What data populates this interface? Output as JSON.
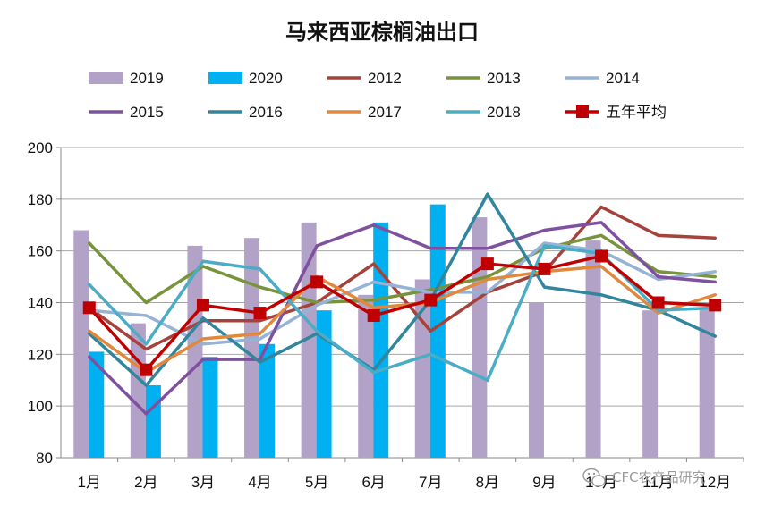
{
  "chart_data": {
    "type": "bar+line",
    "title": "马来西亚棕榈油出口",
    "categories": [
      "1月",
      "2月",
      "3月",
      "4月",
      "5月",
      "6月",
      "7月",
      "8月",
      "9月",
      "10月",
      "11月",
      "12月"
    ],
    "ylim": [
      80,
      200
    ],
    "yticks": [
      80,
      100,
      120,
      140,
      160,
      180,
      200
    ],
    "grid": true,
    "legend_position": "top",
    "bar_series": [
      {
        "name": "2019",
        "color": "#b3a2c7",
        "values": [
          168,
          132,
          162,
          165,
          171,
          143,
          149,
          173,
          140,
          164,
          137,
          138
        ]
      },
      {
        "name": "2020",
        "color": "#00b0f0",
        "values": [
          121,
          108,
          119,
          124,
          137,
          171,
          178,
          null,
          null,
          null,
          null,
          null
        ]
      }
    ],
    "line_series": [
      {
        "name": "2012",
        "color": "#a5423c",
        "values": [
          138,
          122,
          133,
          133,
          140,
          155,
          129,
          144,
          152,
          177,
          166,
          165
        ]
      },
      {
        "name": "2013",
        "color": "#77933c",
        "values": [
          163,
          140,
          154,
          146,
          140,
          141,
          145,
          150,
          161,
          166,
          152,
          150
        ]
      },
      {
        "name": "2014",
        "color": "#95b3d7",
        "values": [
          137,
          135,
          124,
          126,
          139,
          148,
          144,
          144,
          163,
          160,
          149,
          152
        ]
      },
      {
        "name": "2015",
        "color": "#7f509f",
        "values": [
          119,
          97,
          118,
          118,
          162,
          170,
          161,
          161,
          168,
          171,
          150,
          148
        ]
      },
      {
        "name": "2016",
        "color": "#31859c",
        "values": [
          128,
          108,
          134,
          117,
          128,
          114,
          141,
          182,
          146,
          143,
          137,
          127
        ]
      },
      {
        "name": "2017",
        "color": "#e0883c",
        "values": [
          129,
          113,
          126,
          128,
          150,
          138,
          140,
          149,
          152,
          154,
          136,
          143
        ]
      },
      {
        "name": "2018",
        "color": "#4bacc6",
        "values": [
          147,
          124,
          156,
          153,
          129,
          113,
          120,
          110,
          162,
          159,
          137,
          138
        ]
      }
    ],
    "avg_series": {
      "name": "五年平均",
      "color": "#c00000",
      "values": [
        138,
        114,
        139,
        136,
        148,
        135,
        141,
        155,
        153,
        158,
        140,
        139
      ]
    }
  },
  "watermark": {
    "text": "CFC农产品研究",
    "icon": "wechat-icon"
  }
}
